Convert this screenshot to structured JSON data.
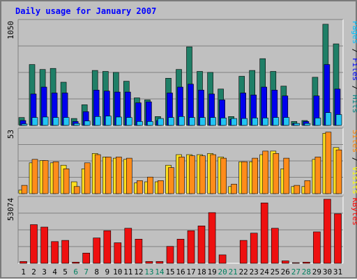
{
  "chart_data": {
    "type": "bar",
    "title": "Daily usage for January 2007",
    "categories": [
      "1",
      "2",
      "3",
      "4",
      "5",
      "6",
      "7",
      "8",
      "9",
      "10",
      "11",
      "12",
      "13",
      "14",
      "15",
      "16",
      "17",
      "18",
      "19",
      "20",
      "21",
      "22",
      "23",
      "24",
      "25",
      "26",
      "27",
      "28",
      "29",
      "30",
      "31"
    ],
    "weekend_days": [
      "6",
      "7",
      "13",
      "14",
      "20",
      "21",
      "27",
      "28"
    ],
    "panels": [
      {
        "id": "top",
        "max_label": "1050",
        "ylim": [
          0,
          1050
        ],
        "right_label_parts": [
          {
            "text": "Pages",
            "color": "#00c0ff"
          },
          {
            "text": " / ",
            "color": "#000000"
          },
          {
            "text": "Files",
            "color": "#0000ff"
          },
          {
            "text": " / ",
            "color": "#000000"
          },
          {
            "text": "Hits",
            "color": "#008080"
          }
        ],
        "series": [
          {
            "name": "Hits",
            "color": "#1f7f67",
            "values": [
              80,
              620,
              570,
              580,
              440,
              70,
              210,
              560,
              550,
              540,
              450,
              280,
              260,
              90,
              480,
              570,
              800,
              550,
              540,
              370,
              90,
              500,
              560,
              680,
              550,
              400,
              40,
              50,
              490,
              1030,
              830
            ]
          },
          {
            "name": "Files",
            "color": "#0000ee",
            "values": [
              50,
              320,
              390,
              330,
              330,
              40,
              140,
              360,
              350,
              340,
              340,
              230,
              240,
              50,
              330,
              390,
              420,
              360,
              320,
              260,
              60,
              330,
              310,
              390,
              360,
              300,
              20,
              40,
              300,
              620,
              370
            ]
          },
          {
            "name": "Pages",
            "color": "#22c4f4",
            "values": [
              15,
              80,
              85,
              80,
              80,
              20,
              45,
              90,
              95,
              85,
              80,
              40,
              40,
              70,
              80,
              90,
              80,
              80,
              80,
              75,
              70,
              70,
              75,
              75,
              80,
              80,
              20,
              20,
              75,
              130,
              110
            ]
          }
        ]
      },
      {
        "id": "mid",
        "max_label": "53",
        "ylim": [
          0,
          53
        ],
        "right_label_parts": [
          {
            "text": "Sites",
            "color": "#ff8000"
          },
          {
            "text": " / ",
            "color": "#000000"
          },
          {
            "text": "Visits",
            "color": "#ffff00"
          }
        ],
        "series": [
          {
            "name": "Visits",
            "color": "#ffe020",
            "values": [
              3,
              26,
              28,
              26,
              24,
              10,
              21,
              34,
              31,
              30,
              29,
              9,
              10,
              10,
              24,
              33,
              33,
              33,
              34,
              31,
              6,
              27,
              27,
              33,
              36,
              21,
              6,
              6,
              29,
              51,
              39
            ]
          },
          {
            "name": "Sites",
            "color": "#ff8c1a",
            "values": [
              7,
              29,
              28,
              27,
              21,
              6,
              26,
              33,
              31,
              31,
              30,
              11,
              14,
              11,
              22,
              31,
              32,
              32,
              33,
              30,
              8,
              27,
              30,
              36,
              34,
              30,
              7,
              11,
              31,
              52,
              37
            ]
          }
        ]
      },
      {
        "id": "bottom",
        "max_label": "53074",
        "ylim": [
          0,
          53074
        ],
        "right_label_parts": [
          {
            "text": "KBytes",
            "color": "#ff0000"
          }
        ],
        "series": [
          {
            "name": "KBytes",
            "color": "#ee1010",
            "values": [
              1500,
              32000,
              30000,
              18000,
              19000,
              1000,
              8500,
              21000,
              27000,
              17000,
              29000,
              20000,
              1500,
              1500,
              14000,
              20000,
              27000,
              31000,
              42000,
              7000,
              0,
              19000,
              25000,
              50000,
              29000,
              2000,
              500,
              1000,
              26000,
              53074,
              41000
            ]
          }
        ]
      }
    ]
  }
}
